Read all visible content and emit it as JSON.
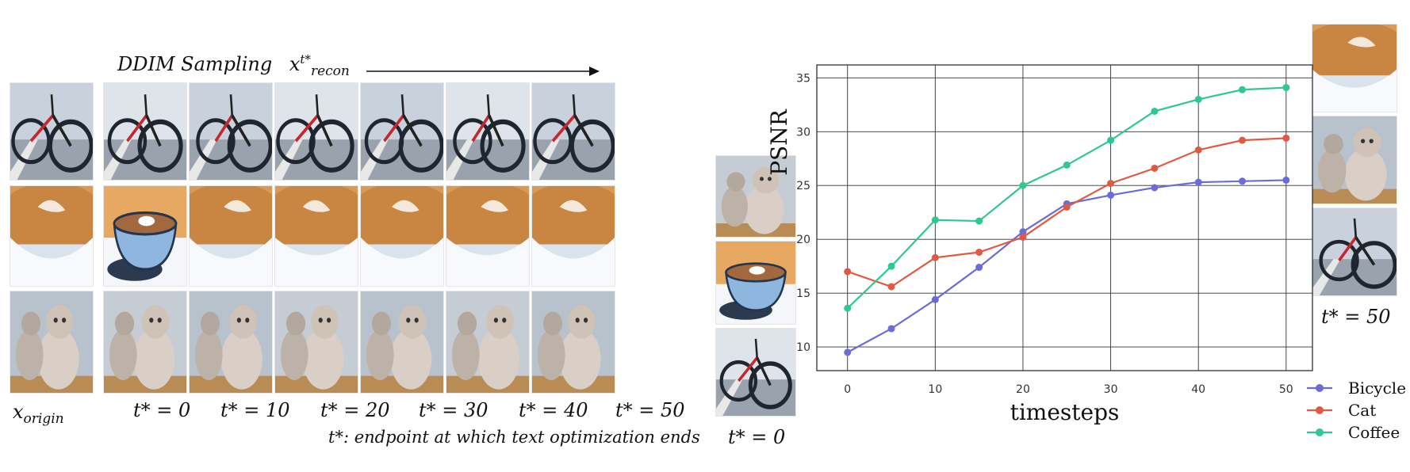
{
  "left_panel": {
    "title": "DDIM Sampling",
    "title_math": "x",
    "title_sup": "t*",
    "title_sub": "recon",
    "column_labels": [
      {
        "main": "x",
        "sub": "origin"
      },
      {
        "main": "t* = 0"
      },
      {
        "main": "t* = 10"
      },
      {
        "main": "t* = 20"
      },
      {
        "main": "t* = 30"
      },
      {
        "main": "t* = 40"
      },
      {
        "main": "t* = 50"
      }
    ],
    "caption": "t*: endpoint at which text optimization ends",
    "rows": [
      "bicycle",
      "coffee",
      "cat"
    ]
  },
  "middle_strip": {
    "label": "t* = 0"
  },
  "right_strip": {
    "label": "t* = 50"
  },
  "chart_data": {
    "type": "line",
    "xlabel": "timesteps",
    "ylabel": "PSNR",
    "xlim": [
      -3.5,
      53
    ],
    "ylim": [
      7.8,
      36.2
    ],
    "xticks": [
      0,
      10,
      20,
      30,
      40,
      50
    ],
    "yticks": [
      10,
      15,
      20,
      25,
      30,
      35
    ],
    "grid": true,
    "legend_position": "bottom-right, outside",
    "x": [
      0,
      5,
      10,
      15,
      20,
      25,
      30,
      35,
      40,
      45,
      50
    ],
    "series": [
      {
        "name": "Bicycle",
        "color": "#6b6bd9",
        "values": [
          9.5,
          11.7,
          14.4,
          17.4,
          20.7,
          23.3,
          24.1,
          24.8,
          25.3,
          25.4,
          25.5
        ]
      },
      {
        "name": "Cat",
        "color": "#e05a43",
        "values": [
          17.0,
          15.6,
          18.3,
          18.8,
          20.2,
          23.0,
          25.2,
          26.6,
          28.3,
          29.2,
          29.4
        ]
      },
      {
        "name": "Coffee",
        "color": "#2ec98f",
        "values": [
          13.6,
          17.5,
          21.8,
          21.7,
          25.0,
          26.9,
          29.2,
          31.9,
          33.0,
          33.9,
          34.1
        ]
      }
    ]
  }
}
